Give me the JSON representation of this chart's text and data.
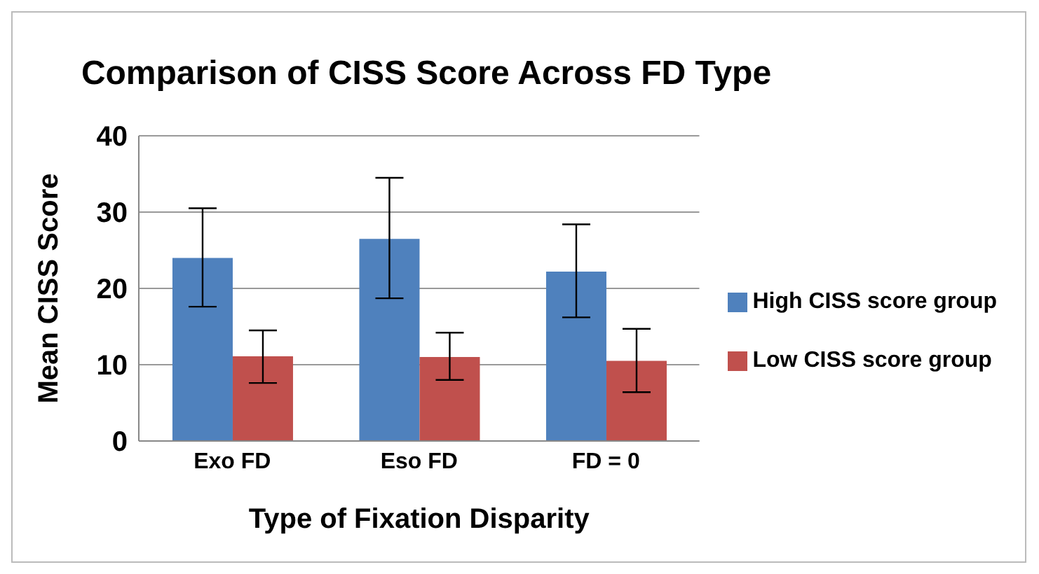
{
  "chart_data": {
    "type": "bar",
    "title": "Comparison of CISS Score Across FD Type",
    "xlabel": "Type of Fixation Disparity",
    "ylabel": "Mean CISS Score",
    "categories": [
      "Exo FD",
      "Eso FD",
      "FD = 0"
    ],
    "series": [
      {
        "name": "High CISS score group",
        "color": "#4f81bd",
        "values": [
          24,
          26.5,
          22.2
        ],
        "errors": [
          [
            17.6,
            30.5
          ],
          [
            18.7,
            34.5
          ],
          [
            16.2,
            28.4
          ]
        ]
      },
      {
        "name": "Low CISS score group",
        "color": "#c0504d",
        "values": [
          11.1,
          11,
          10.5
        ],
        "errors": [
          [
            7.6,
            14.5
          ],
          [
            8,
            14.2
          ],
          [
            6.4,
            14.7
          ]
        ]
      }
    ],
    "ylim": [
      0,
      40
    ],
    "yticks": [
      0,
      10,
      20,
      30,
      40
    ],
    "grid": "y",
    "legend": "right"
  }
}
